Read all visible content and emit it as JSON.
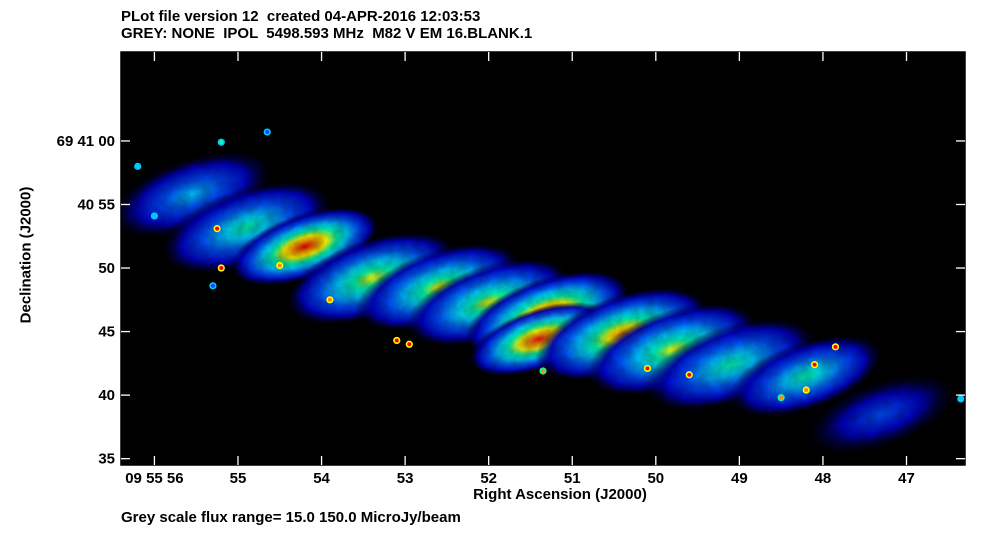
{
  "header": {
    "line1": "PLot file version 12  created 04-APR-2016 12:03:53",
    "line2": "GREY: NONE  IPOL  5498.593 MHz  M82 V EM 16.BLANK.1"
  },
  "footer": "Grey scale flux range= 15.0 150.0 MicroJy/beam",
  "colors": {
    "background": "#000000",
    "scale": [
      "#000000",
      "#0000c8",
      "#0050ff",
      "#00c8ff",
      "#00ffb4",
      "#ffff00",
      "#ff8c00",
      "#ff0000"
    ]
  },
  "chart_data": {
    "type": "heatmap",
    "title": "M82 V EM 16.BLANK.1",
    "xlabel": "Right Ascension (J2000)",
    "ylabel": "Declination (J2000)",
    "x_unit": "seconds of RA (09h 55m + x s)",
    "y_unit": "arcsec (69d 40' + y\")",
    "xlim": [
      56.4,
      46.3
    ],
    "ylim": [
      34.5,
      67
    ],
    "x_ticks": [
      {
        "value": 56,
        "label": "09 55 56"
      },
      {
        "value": 55,
        "label": "55"
      },
      {
        "value": 54,
        "label": "54"
      },
      {
        "value": 53,
        "label": "53"
      },
      {
        "value": 52,
        "label": "52"
      },
      {
        "value": 51,
        "label": "51"
      },
      {
        "value": 50,
        "label": "50"
      },
      {
        "value": 49,
        "label": "49"
      },
      {
        "value": 48,
        "label": "48"
      },
      {
        "value": 47,
        "label": "47"
      }
    ],
    "y_ticks": [
      {
        "value": 35,
        "label": "35"
      },
      {
        "value": 40,
        "label": "40"
      },
      {
        "value": 45,
        "label": "45"
      },
      {
        "value": 50,
        "label": "50"
      },
      {
        "value": 55,
        "label": "40 55"
      },
      {
        "value": 60,
        "label": "69 41 00"
      }
    ],
    "flux_range": [
      15.0,
      150.0
    ],
    "flux_unit": "MicroJy/beam",
    "frequency_mhz": 5498.593,
    "emission_components": [
      {
        "ra": 55.55,
        "dec": 55.8,
        "level": 0.45,
        "spread": 0.55
      },
      {
        "ra": 54.9,
        "dec": 53.2,
        "level": 0.6,
        "spread": 0.6
      },
      {
        "ra": 54.2,
        "dec": 51.7,
        "level": 1.0,
        "spread": 0.45
      },
      {
        "ra": 53.4,
        "dec": 49.2,
        "level": 0.65,
        "spread": 0.6
      },
      {
        "ra": 52.6,
        "dec": 48.5,
        "level": 0.7,
        "spread": 0.55
      },
      {
        "ra": 52.0,
        "dec": 47.3,
        "level": 0.7,
        "spread": 0.55
      },
      {
        "ra": 51.3,
        "dec": 46.3,
        "level": 1.0,
        "spread": 0.55
      },
      {
        "ra": 51.4,
        "dec": 44.4,
        "level": 1.0,
        "spread": 0.4
      },
      {
        "ra": 50.4,
        "dec": 44.8,
        "level": 0.8,
        "spread": 0.6
      },
      {
        "ra": 49.8,
        "dec": 43.6,
        "level": 0.65,
        "spread": 0.6
      },
      {
        "ra": 49.1,
        "dec": 42.4,
        "level": 0.5,
        "spread": 0.6
      },
      {
        "ra": 48.2,
        "dec": 41.5,
        "level": 0.55,
        "spread": 0.5
      },
      {
        "ra": 47.3,
        "dec": 38.5,
        "level": 0.3,
        "spread": 0.5
      }
    ],
    "point_sources": [
      {
        "ra": 55.25,
        "dec": 53.1,
        "level": 1.0
      },
      {
        "ra": 55.2,
        "dec": 50.0,
        "level": 1.0
      },
      {
        "ra": 54.5,
        "dec": 50.2,
        "level": 0.9
      },
      {
        "ra": 53.9,
        "dec": 47.5,
        "level": 0.9
      },
      {
        "ra": 53.1,
        "dec": 44.3,
        "level": 1.0
      },
      {
        "ra": 52.95,
        "dec": 44.0,
        "level": 1.0
      },
      {
        "ra": 51.35,
        "dec": 41.9,
        "level": 0.8
      },
      {
        "ra": 50.1,
        "dec": 42.1,
        "level": 1.0
      },
      {
        "ra": 49.6,
        "dec": 41.6,
        "level": 1.0
      },
      {
        "ra": 48.1,
        "dec": 42.4,
        "level": 1.0
      },
      {
        "ra": 47.85,
        "dec": 43.8,
        "level": 1.0
      },
      {
        "ra": 48.2,
        "dec": 40.4,
        "level": 0.9
      },
      {
        "ra": 48.5,
        "dec": 39.8,
        "level": 0.8
      },
      {
        "ra": 55.2,
        "dec": 59.9,
        "level": 0.6
      },
      {
        "ra": 54.65,
        "dec": 60.7,
        "level": 0.35
      },
      {
        "ra": 56.2,
        "dec": 58.0,
        "level": 0.4
      },
      {
        "ra": 56.0,
        "dec": 54.1,
        "level": 0.45
      },
      {
        "ra": 55.3,
        "dec": 48.6,
        "level": 0.3
      },
      {
        "ra": 46.35,
        "dec": 39.7,
        "level": 0.4
      }
    ]
  }
}
